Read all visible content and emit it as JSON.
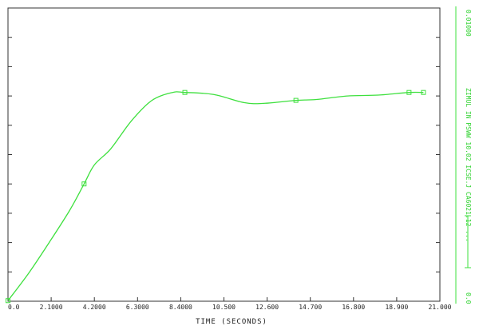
{
  "chart_data": {
    "type": "line",
    "xlabel": "TIME (SECONDS)",
    "x_tick_labels": [
      "0.0",
      "2.1000",
      "4.2000",
      "6.3000",
      "8.4000",
      "10.500",
      "12.600",
      "14.700",
      "16.800",
      "18.900",
      "21.000"
    ],
    "xlim": [
      0,
      21
    ],
    "ylim": [
      0,
      0.1
    ],
    "y_tick_count": 10,
    "grid": false,
    "series": [
      {
        "color": "#3ee03e",
        "x": [
          0.0,
          1.0,
          2.0,
          3.0,
          3.7,
          4.2,
          5.0,
          6.0,
          7.0,
          8.0,
          8.6,
          10.0,
          11.5,
          12.5,
          14.0,
          15.0,
          16.5,
          18.0,
          19.5,
          20.2
        ],
        "y": [
          0.0002,
          0.0095,
          0.02,
          0.031,
          0.04,
          0.0465,
          0.052,
          0.0615,
          0.0685,
          0.0712,
          0.0712,
          0.0705,
          0.0677,
          0.0675,
          0.0685,
          0.0688,
          0.07,
          0.0703,
          0.0712,
          0.0712
        ],
        "markers_at_x": [
          0.0,
          3.7,
          8.6,
          14.0,
          19.5,
          20.2
        ]
      }
    ],
    "right_axis": {
      "color": "#3ee03e",
      "top_label": "0.01000",
      "bottom_label": "0.0",
      "title": "ZIMUL IN PSWW 10.02 ICSE.J CA6021.12 ..."
    }
  }
}
